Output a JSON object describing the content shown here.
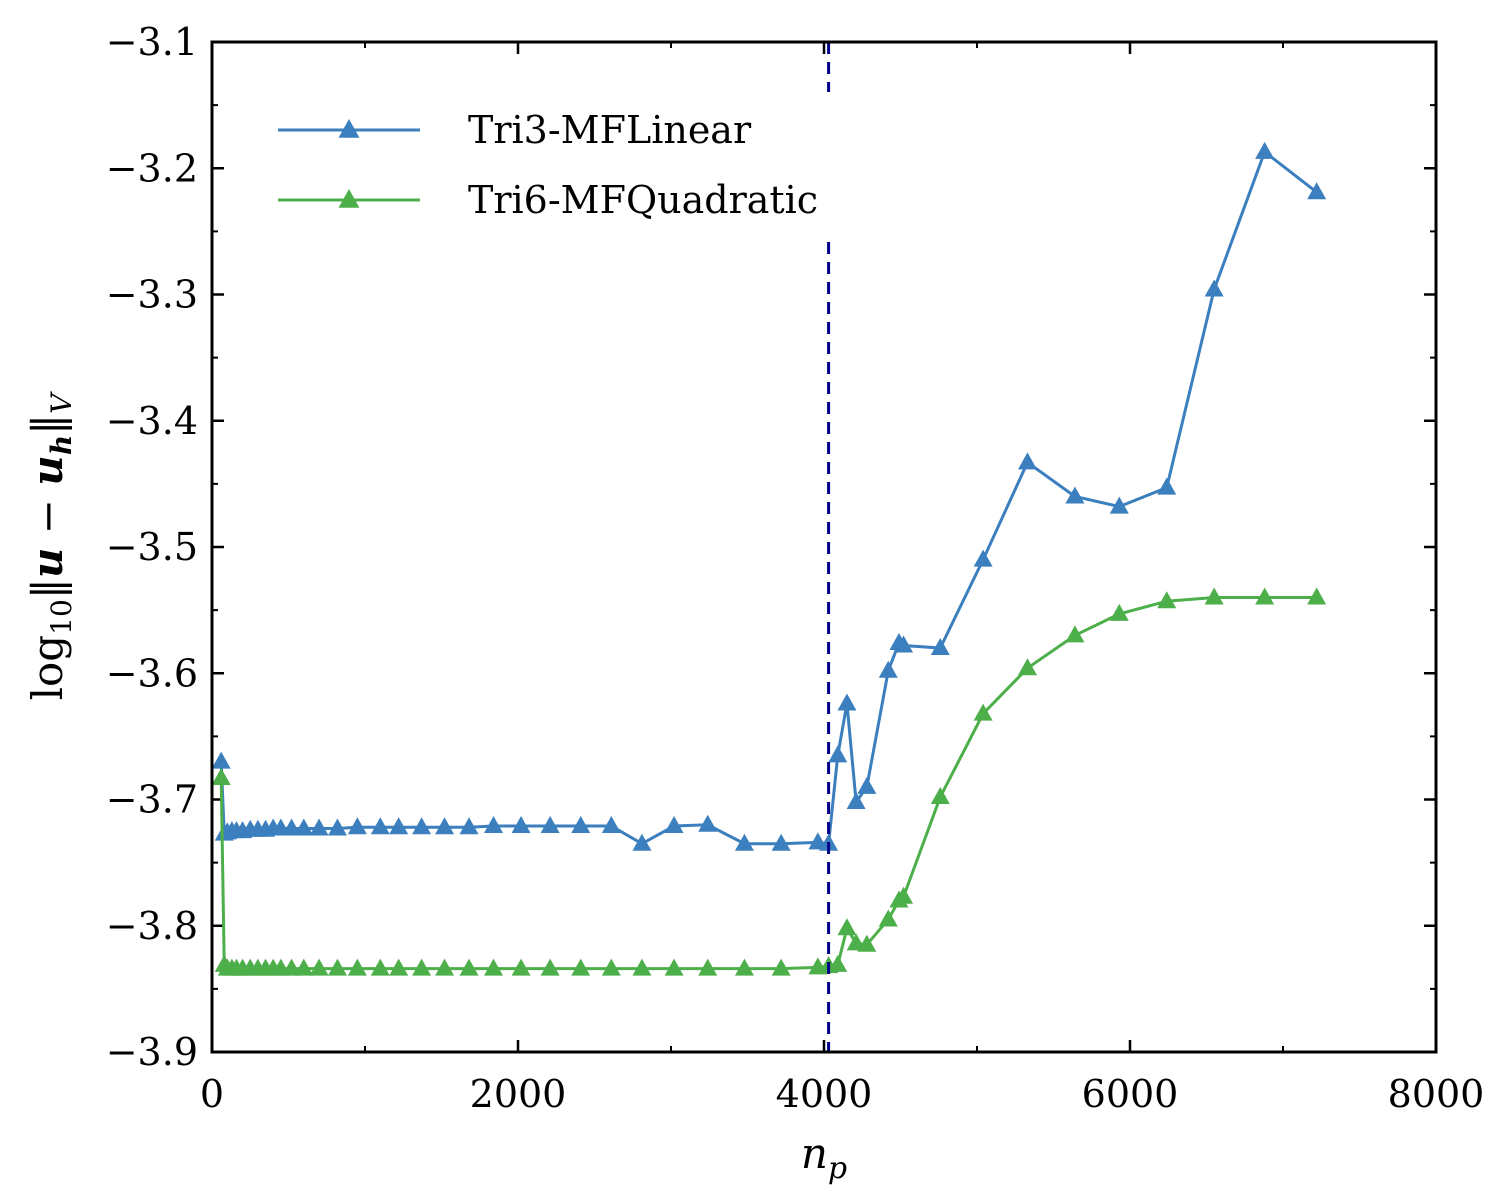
{
  "chart_data": {
    "type": "line",
    "xlabel": "n_p",
    "ylabel": "log10‖u − u_h‖_V",
    "xlim": [
      0,
      8000
    ],
    "ylim": [
      -3.9,
      -3.1
    ],
    "x_ticks": [
      "0",
      "2000",
      "4000",
      "6000",
      "8000"
    ],
    "y_ticks": [
      "−3.1",
      "−3.2",
      "−3.3",
      "−3.4",
      "−3.5",
      "−3.6",
      "−3.7",
      "−3.8",
      "−3.9"
    ],
    "x_tick_values": [
      0,
      2000,
      4000,
      6000,
      8000
    ],
    "y_tick_values": [
      -3.1,
      -3.2,
      -3.3,
      -3.4,
      -3.5,
      -3.6,
      -3.7,
      -3.8,
      -3.9
    ],
    "grid": false,
    "legend_position": "upper-left",
    "vline": {
      "x": 4030,
      "style": "dashed",
      "color": "#00008b"
    },
    "series": [
      {
        "name": "Tri3-MFLinear",
        "color": "#3b7fbf",
        "marker": "triangle",
        "x": [
          60,
          80,
          100,
          130,
          160,
          200,
          250,
          300,
          350,
          400,
          450,
          520,
          600,
          700,
          820,
          950,
          1100,
          1220,
          1370,
          1520,
          1680,
          1840,
          2020,
          2210,
          2410,
          2610,
          2810,
          3020,
          3240,
          3480,
          3720,
          3960,
          4030,
          4090,
          4150,
          4210,
          4280,
          4420,
          4490,
          4520,
          4760,
          5040,
          5330,
          5640,
          5930,
          6240,
          6550,
          6880,
          7220
        ],
        "y": [
          -3.67,
          -3.727,
          -3.726,
          -3.725,
          -3.725,
          -3.725,
          -3.724,
          -3.724,
          -3.724,
          -3.723,
          -3.723,
          -3.723,
          -3.723,
          -3.723,
          -3.723,
          -3.722,
          -3.722,
          -3.722,
          -3.722,
          -3.722,
          -3.722,
          -3.721,
          -3.721,
          -3.721,
          -3.721,
          -3.721,
          -3.735,
          -3.721,
          -3.72,
          -3.735,
          -3.735,
          -3.734,
          -3.735,
          -3.665,
          -3.624,
          -3.702,
          -3.69,
          -3.598,
          -3.576,
          -3.578,
          -3.58,
          -3.51,
          -3.433,
          -3.46,
          -3.468,
          -3.453,
          -3.296,
          -3.187,
          -3.219
        ]
      },
      {
        "name": "Tri6-MFQuadratic",
        "color": "#4daf4a",
        "marker": "triangle",
        "x": [
          60,
          80,
          100,
          130,
          160,
          200,
          250,
          300,
          350,
          400,
          450,
          520,
          600,
          700,
          820,
          950,
          1100,
          1220,
          1370,
          1520,
          1680,
          1840,
          2020,
          2210,
          2410,
          2610,
          2810,
          3020,
          3240,
          3480,
          3720,
          3960,
          4030,
          4090,
          4150,
          4210,
          4280,
          4420,
          4490,
          4520,
          4760,
          5040,
          5330,
          5640,
          5930,
          6240,
          6550,
          6880,
          7220
        ],
        "y": [
          -3.683,
          -3.831,
          -3.834,
          -3.834,
          -3.834,
          -3.834,
          -3.834,
          -3.834,
          -3.834,
          -3.834,
          -3.834,
          -3.834,
          -3.834,
          -3.834,
          -3.834,
          -3.834,
          -3.834,
          -3.834,
          -3.834,
          -3.834,
          -3.834,
          -3.834,
          -3.834,
          -3.834,
          -3.834,
          -3.834,
          -3.834,
          -3.834,
          -3.834,
          -3.834,
          -3.834,
          -3.833,
          -3.832,
          -3.831,
          -3.802,
          -3.814,
          -3.815,
          -3.795,
          -3.78,
          -3.777,
          -3.698,
          -3.632,
          -3.596,
          -3.57,
          -3.553,
          -3.543,
          -3.54,
          -3.54,
          -3.54
        ]
      }
    ]
  }
}
